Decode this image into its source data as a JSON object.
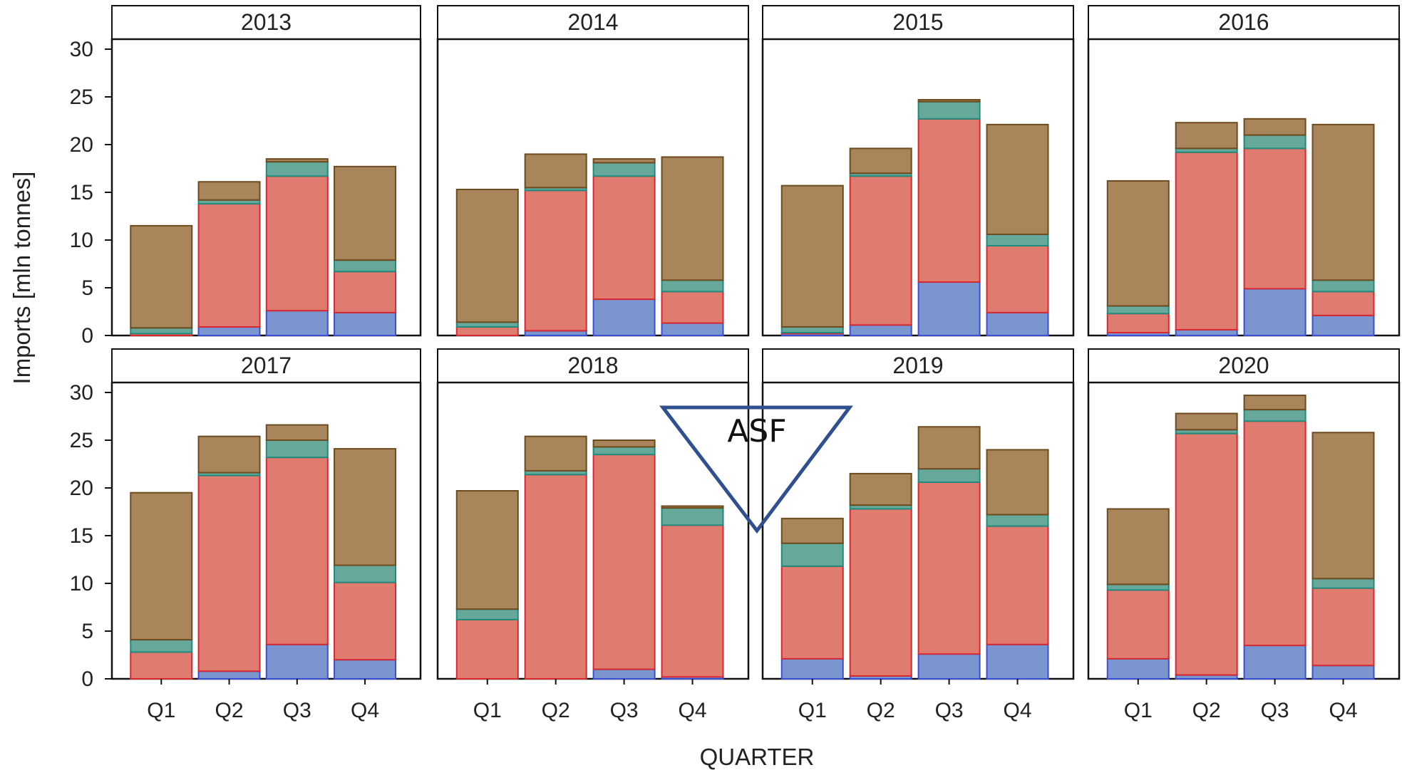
{
  "chart_data": {
    "type": "bar",
    "stacked": true,
    "layout": "facet-grid 2x4",
    "xlabel": "QUARTER",
    "ylabel": "Imports [mln tonnes]",
    "ylim": [
      0,
      30
    ],
    "yticks": [
      0,
      5,
      10,
      15,
      20,
      25,
      30
    ],
    "categories": [
      "Q1",
      "Q2",
      "Q3",
      "Q4"
    ],
    "grid": false,
    "legend": "none",
    "series_colors": [
      "#7b95cf",
      "#e07b70",
      "#66a89a",
      "#a8855b"
    ],
    "series_edge_colors": [
      "#3a4fd6",
      "#d8282f",
      "#1f8a7e",
      "#6e4a1f"
    ],
    "annotation": {
      "text": "ASF",
      "shape": "inverted-triangle",
      "color": "#2f4f8f"
    },
    "panels": [
      {
        "title": "2013",
        "series": [
          {
            "values": [
              0.0,
              0.9,
              2.6,
              2.4
            ]
          },
          {
            "values": [
              0.2,
              12.9,
              14.1,
              4.3
            ]
          },
          {
            "values": [
              0.6,
              0.4,
              1.5,
              1.2
            ]
          },
          {
            "values": [
              10.7,
              1.9,
              0.3,
              9.8
            ]
          }
        ]
      },
      {
        "title": "2014",
        "series": [
          {
            "values": [
              0.0,
              0.5,
              3.8,
              1.3
            ]
          },
          {
            "values": [
              0.9,
              14.7,
              12.9,
              3.3
            ]
          },
          {
            "values": [
              0.5,
              0.3,
              1.4,
              1.2
            ]
          },
          {
            "values": [
              13.9,
              3.5,
              0.4,
              12.9
            ]
          }
        ]
      },
      {
        "title": "2015",
        "series": [
          {
            "values": [
              0.2,
              1.1,
              5.6,
              2.4
            ]
          },
          {
            "values": [
              0.1,
              15.6,
              17.1,
              7.0
            ]
          },
          {
            "values": [
              0.6,
              0.3,
              1.8,
              1.2
            ]
          },
          {
            "values": [
              14.8,
              2.6,
              0.2,
              11.5
            ]
          }
        ]
      },
      {
        "title": "2016",
        "series": [
          {
            "values": [
              0.3,
              0.6,
              4.9,
              2.1
            ]
          },
          {
            "values": [
              2.0,
              18.6,
              14.7,
              2.5
            ]
          },
          {
            "values": [
              0.8,
              0.4,
              1.4,
              1.2
            ]
          },
          {
            "values": [
              13.1,
              2.7,
              1.7,
              16.3
            ]
          }
        ]
      },
      {
        "title": "2017",
        "series": [
          {
            "values": [
              0.0,
              0.8,
              3.6,
              2.0
            ]
          },
          {
            "values": [
              2.8,
              20.5,
              19.6,
              8.1
            ]
          },
          {
            "values": [
              1.3,
              0.3,
              1.8,
              1.8
            ]
          },
          {
            "values": [
              15.4,
              3.8,
              1.6,
              12.2
            ]
          }
        ]
      },
      {
        "title": "2018",
        "series": [
          {
            "values": [
              0.0,
              0.0,
              1.0,
              0.2
            ]
          },
          {
            "values": [
              6.2,
              21.4,
              22.5,
              15.9
            ]
          },
          {
            "values": [
              1.1,
              0.4,
              0.8,
              1.8
            ]
          },
          {
            "values": [
              12.4,
              3.6,
              0.7,
              0.2
            ]
          }
        ]
      },
      {
        "title": "2019",
        "series": [
          {
            "values": [
              2.1,
              0.3,
              2.6,
              3.6
            ]
          },
          {
            "values": [
              9.7,
              17.5,
              18.0,
              12.4
            ]
          },
          {
            "values": [
              2.4,
              0.4,
              1.4,
              1.2
            ]
          },
          {
            "values": [
              2.6,
              3.3,
              4.4,
              6.8
            ]
          }
        ]
      },
      {
        "title": "2020",
        "series": [
          {
            "values": [
              2.1,
              0.4,
              3.5,
              1.4
            ]
          },
          {
            "values": [
              7.2,
              25.3,
              23.5,
              8.1
            ]
          },
          {
            "values": [
              0.6,
              0.4,
              1.2,
              1.0
            ]
          },
          {
            "values": [
              7.9,
              1.7,
              1.5,
              15.3
            ]
          }
        ]
      }
    ]
  }
}
